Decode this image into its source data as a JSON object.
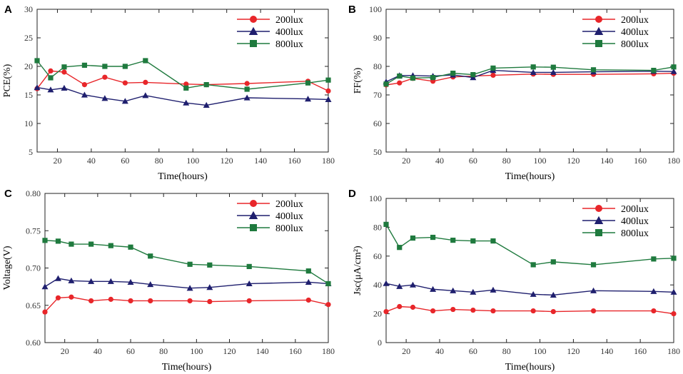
{
  "figure": {
    "colors": {
      "200lux": "#e8262a",
      "400lux": "#1f1f6e",
      "800lux": "#1f7a3e"
    }
  },
  "chart_data": [
    {
      "panel": "A",
      "type": "line",
      "xlabel": "Time(hours)",
      "ylabel": "PCE(%)",
      "xlim": [
        8,
        180
      ],
      "ylim": [
        5,
        30
      ],
      "xticks": [
        20,
        40,
        60,
        80,
        100,
        120,
        140,
        160,
        180
      ],
      "yticks": [
        5,
        10,
        15,
        20,
        25,
        30
      ],
      "legend_position": "top-right",
      "series": [
        {
          "name": "200lux",
          "marker": "circle",
          "x": [
            8,
            16,
            24,
            36,
            48,
            60,
            72,
            96,
            108,
            132,
            168,
            180
          ],
          "y": [
            16.1,
            19.2,
            19.0,
            16.8,
            18.1,
            17.1,
            17.2,
            16.9,
            16.8,
            17.0,
            17.4,
            15.7
          ]
        },
        {
          "name": "400lux",
          "marker": "triangle",
          "x": [
            8,
            16,
            24,
            36,
            48,
            60,
            72,
            96,
            108,
            132,
            168,
            180
          ],
          "y": [
            16.3,
            15.9,
            16.2,
            15.0,
            14.4,
            13.9,
            14.9,
            13.6,
            13.2,
            14.5,
            14.3,
            14.2
          ]
        },
        {
          "name": "800lux",
          "marker": "square",
          "x": [
            8,
            16,
            24,
            36,
            48,
            60,
            72,
            96,
            108,
            132,
            168,
            180
          ],
          "y": [
            21.0,
            18.0,
            19.9,
            20.2,
            20.0,
            20.0,
            21.0,
            16.2,
            16.8,
            16.0,
            17.1,
            17.6
          ]
        }
      ]
    },
    {
      "panel": "B",
      "type": "line",
      "xlabel": "Time(hours)",
      "ylabel": "FF(%)",
      "xlim": [
        8,
        180
      ],
      "ylim": [
        50,
        100
      ],
      "xticks": [
        20,
        40,
        60,
        80,
        100,
        120,
        140,
        160,
        180
      ],
      "yticks": [
        50,
        60,
        70,
        80,
        90,
        100
      ],
      "legend_position": "top-right",
      "series": [
        {
          "name": "200lux",
          "marker": "circle",
          "x": [
            8,
            16,
            24,
            36,
            48,
            60,
            72,
            96,
            108,
            132,
            168,
            180
          ],
          "y": [
            73.5,
            74.2,
            75.8,
            74.8,
            76.3,
            76.6,
            76.9,
            77.3,
            77.2,
            77.2,
            77.4,
            77.6
          ]
        },
        {
          "name": "400lux",
          "marker": "triangle",
          "x": [
            8,
            16,
            24,
            36,
            48,
            60,
            72,
            96,
            108,
            132,
            168,
            180
          ],
          "y": [
            74.6,
            76.8,
            76.8,
            76.6,
            77.0,
            76.1,
            78.6,
            77.9,
            77.9,
            78.1,
            78.3,
            78.2
          ]
        },
        {
          "name": "800lux",
          "marker": "square",
          "x": [
            8,
            16,
            24,
            36,
            48,
            60,
            72,
            96,
            108,
            132,
            168,
            180
          ],
          "y": [
            73.8,
            76.6,
            75.9,
            76.1,
            77.6,
            77.1,
            79.4,
            79.8,
            79.7,
            78.8,
            78.6,
            79.8
          ]
        }
      ]
    },
    {
      "panel": "C",
      "type": "line",
      "xlabel": "Time(hours)",
      "ylabel": "Voltage(V)",
      "xlim": [
        8,
        180
      ],
      "ylim": [
        0.6,
        0.8
      ],
      "xticks": [
        20,
        40,
        60,
        80,
        100,
        120,
        140,
        160,
        180
      ],
      "yticks": [
        0.6,
        0.65,
        0.7,
        0.75,
        0.8
      ],
      "ytick_labels": [
        "0.60",
        "0.65",
        "0.70",
        "0.75",
        "0.80"
      ],
      "legend_position": "top-right",
      "series": [
        {
          "name": "200lux",
          "marker": "circle",
          "x": [
            8,
            16,
            24,
            36,
            48,
            60,
            72,
            96,
            108,
            132,
            168,
            180
          ],
          "y": [
            0.641,
            0.66,
            0.661,
            0.656,
            0.658,
            0.656,
            0.656,
            0.656,
            0.655,
            0.656,
            0.657,
            0.651
          ]
        },
        {
          "name": "400lux",
          "marker": "triangle",
          "x": [
            8,
            16,
            24,
            36,
            48,
            60,
            72,
            96,
            108,
            132,
            168,
            180
          ],
          "y": [
            0.675,
            0.686,
            0.683,
            0.682,
            0.682,
            0.681,
            0.678,
            0.673,
            0.674,
            0.679,
            0.681,
            0.679
          ]
        },
        {
          "name": "800lux",
          "marker": "square",
          "x": [
            8,
            16,
            24,
            36,
            48,
            60,
            72,
            96,
            108,
            132,
            168,
            180
          ],
          "y": [
            0.737,
            0.736,
            0.732,
            0.732,
            0.73,
            0.728,
            0.716,
            0.705,
            0.704,
            0.702,
            0.696,
            0.679
          ]
        }
      ]
    },
    {
      "panel": "D",
      "type": "line",
      "xlabel": "Time(hours)",
      "ylabel": "Jsc(μA/cm²)",
      "xlim": [
        8,
        180
      ],
      "ylim": [
        0,
        100
      ],
      "xticks": [
        20,
        40,
        60,
        80,
        100,
        120,
        140,
        160,
        180
      ],
      "yticks": [
        0,
        20,
        40,
        60,
        80,
        100
      ],
      "legend_position": "top-right",
      "series": [
        {
          "name": "200lux",
          "marker": "circle",
          "x": [
            8,
            16,
            24,
            36,
            48,
            60,
            72,
            96,
            108,
            132,
            168,
            180
          ],
          "y": [
            21.5,
            25.0,
            24.5,
            22.0,
            23.0,
            22.5,
            22.0,
            22.0,
            21.5,
            22.0,
            22.0,
            20.0
          ]
        },
        {
          "name": "400lux",
          "marker": "triangle",
          "x": [
            8,
            16,
            24,
            36,
            48,
            60,
            72,
            96,
            108,
            132,
            168,
            180
          ],
          "y": [
            41.0,
            39.0,
            40.0,
            37.0,
            36.0,
            35.0,
            36.5,
            33.5,
            33.0,
            36.0,
            35.5,
            35.0
          ]
        },
        {
          "name": "800lux",
          "marker": "square",
          "x": [
            8,
            16,
            24,
            36,
            48,
            60,
            72,
            96,
            108,
            132,
            168,
            180
          ],
          "y": [
            82.0,
            66.0,
            72.5,
            73.0,
            71.0,
            70.5,
            70.5,
            54.0,
            56.0,
            54.0,
            58.0,
            58.5
          ]
        }
      ]
    }
  ]
}
